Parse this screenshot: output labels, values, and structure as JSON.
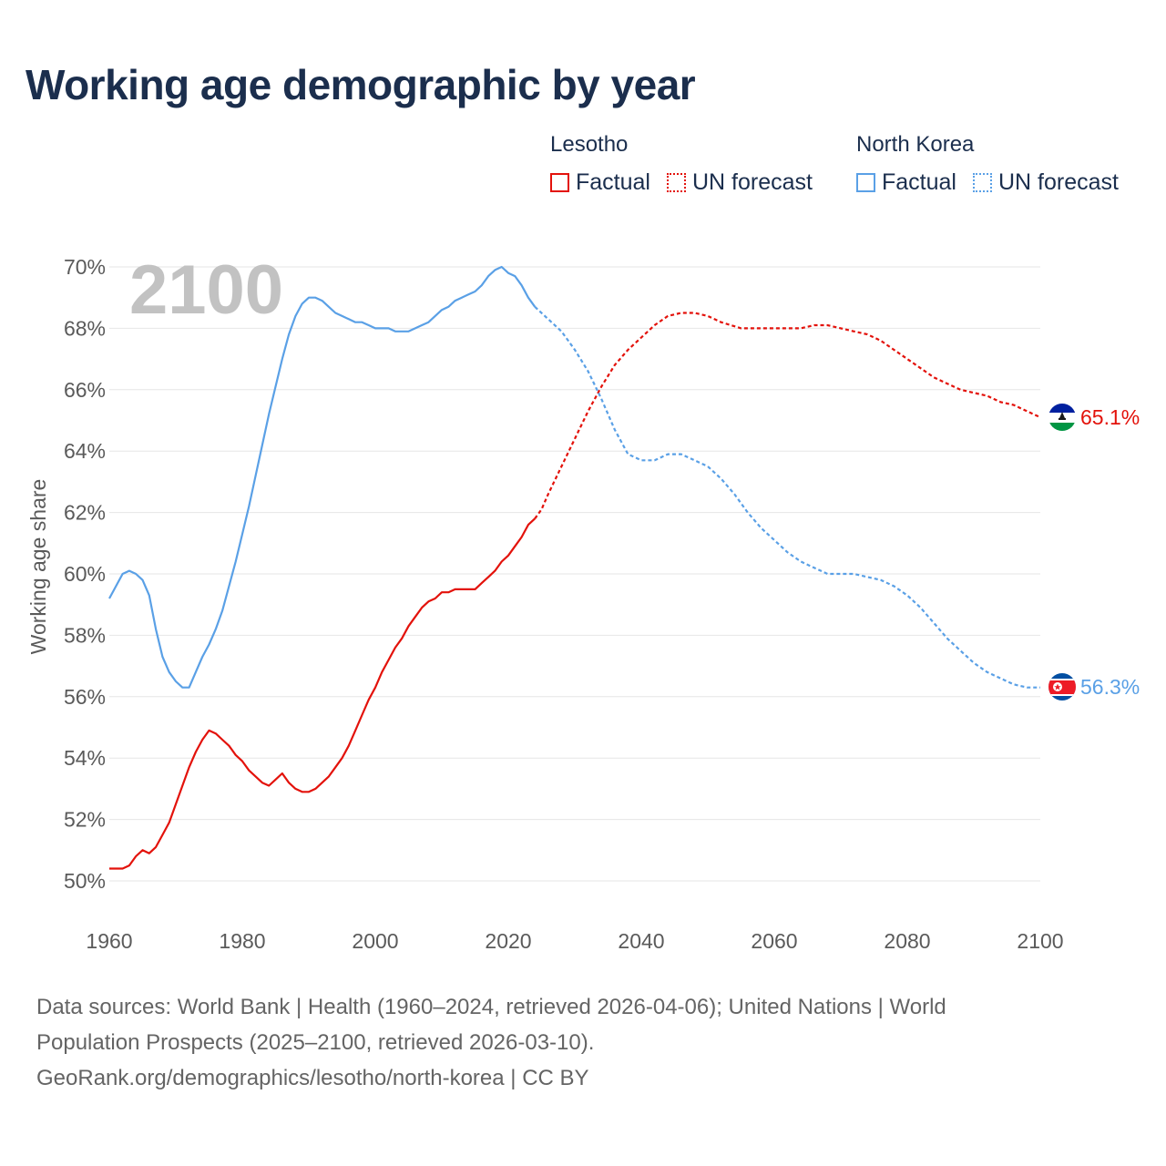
{
  "title": "Working age demographic by year",
  "legend": {
    "groups": [
      {
        "country": "Lesotho",
        "factual": "Factual",
        "forecast": "UN forecast"
      },
      {
        "country": "North Korea",
        "factual": "Factual",
        "forecast": "UN forecast"
      }
    ]
  },
  "source": {
    "line1": "Data sources: World Bank | Health (1960–2024, retrieved 2026-04-06); United Nations | World",
    "line2": "Population Prospects (2025–2100, retrieved 2026-03-10).",
    "line3": "GeoRank.org/demographics/lesotho/north-korea | CC BY"
  },
  "colors": {
    "lesotho": "#e3120b",
    "north_korea": "#5aa0e6",
    "grid": "#e6e6e6",
    "year_watermark": "#c2c2c2"
  },
  "chart_data": {
    "type": "line",
    "title": "Working age demographic by year",
    "xlabel": "",
    "ylabel": "Working age share",
    "xlim": [
      1960,
      2100
    ],
    "ylim": [
      50,
      70
    ],
    "x_ticks": [
      1960,
      1980,
      2000,
      2020,
      2040,
      2060,
      2080,
      2100
    ],
    "y_ticks": [
      50,
      52,
      54,
      56,
      58,
      60,
      62,
      64,
      66,
      68,
      70
    ],
    "y_tick_labels": [
      "50%",
      "52%",
      "54%",
      "56%",
      "58%",
      "60%",
      "62%",
      "64%",
      "66%",
      "68%",
      "70%"
    ],
    "year_display": "2100",
    "factual_range": [
      1960,
      2024
    ],
    "forecast_range": [
      2024,
      2100
    ],
    "series": [
      {
        "name": "Lesotho",
        "end_label": "65.1%",
        "flag": "lesotho-flag",
        "points": [
          [
            1960,
            50.4
          ],
          [
            1962,
            50.4
          ],
          [
            1963,
            50.5
          ],
          [
            1964,
            50.8
          ],
          [
            1965,
            51.0
          ],
          [
            1966,
            50.9
          ],
          [
            1967,
            51.1
          ],
          [
            1968,
            51.5
          ],
          [
            1969,
            51.9
          ],
          [
            1970,
            52.5
          ],
          [
            1971,
            53.1
          ],
          [
            1972,
            53.7
          ],
          [
            1973,
            54.2
          ],
          [
            1974,
            54.6
          ],
          [
            1975,
            54.9
          ],
          [
            1976,
            54.8
          ],
          [
            1977,
            54.6
          ],
          [
            1978,
            54.4
          ],
          [
            1979,
            54.1
          ],
          [
            1980,
            53.9
          ],
          [
            1981,
            53.6
          ],
          [
            1982,
            53.4
          ],
          [
            1983,
            53.2
          ],
          [
            1984,
            53.1
          ],
          [
            1985,
            53.3
          ],
          [
            1986,
            53.5
          ],
          [
            1987,
            53.2
          ],
          [
            1988,
            53.0
          ],
          [
            1989,
            52.9
          ],
          [
            1990,
            52.9
          ],
          [
            1991,
            53.0
          ],
          [
            1992,
            53.2
          ],
          [
            1993,
            53.4
          ],
          [
            1994,
            53.7
          ],
          [
            1995,
            54.0
          ],
          [
            1996,
            54.4
          ],
          [
            1997,
            54.9
          ],
          [
            1998,
            55.4
          ],
          [
            1999,
            55.9
          ],
          [
            2000,
            56.3
          ],
          [
            2001,
            56.8
          ],
          [
            2002,
            57.2
          ],
          [
            2003,
            57.6
          ],
          [
            2004,
            57.9
          ],
          [
            2005,
            58.3
          ],
          [
            2006,
            58.6
          ],
          [
            2007,
            58.9
          ],
          [
            2008,
            59.1
          ],
          [
            2009,
            59.2
          ],
          [
            2010,
            59.4
          ],
          [
            2011,
            59.4
          ],
          [
            2012,
            59.5
          ],
          [
            2013,
            59.5
          ],
          [
            2014,
            59.5
          ],
          [
            2015,
            59.5
          ],
          [
            2016,
            59.7
          ],
          [
            2017,
            59.9
          ],
          [
            2018,
            60.1
          ],
          [
            2019,
            60.4
          ],
          [
            2020,
            60.6
          ],
          [
            2021,
            60.9
          ],
          [
            2022,
            61.2
          ],
          [
            2023,
            61.6
          ],
          [
            2024,
            61.8
          ],
          [
            2025,
            62.1
          ],
          [
            2026,
            62.6
          ],
          [
            2028,
            63.5
          ],
          [
            2030,
            64.4
          ],
          [
            2032,
            65.3
          ],
          [
            2034,
            66.1
          ],
          [
            2036,
            66.8
          ],
          [
            2038,
            67.3
          ],
          [
            2040,
            67.7
          ],
          [
            2042,
            68.1
          ],
          [
            2044,
            68.4
          ],
          [
            2046,
            68.5
          ],
          [
            2048,
            68.5
          ],
          [
            2050,
            68.4
          ],
          [
            2052,
            68.2
          ],
          [
            2055,
            68.0
          ],
          [
            2058,
            68.0
          ],
          [
            2060,
            68.0
          ],
          [
            2064,
            68.0
          ],
          [
            2066,
            68.1
          ],
          [
            2068,
            68.1
          ],
          [
            2070,
            68.0
          ],
          [
            2072,
            67.9
          ],
          [
            2074,
            67.8
          ],
          [
            2076,
            67.6
          ],
          [
            2078,
            67.3
          ],
          [
            2080,
            67.0
          ],
          [
            2082,
            66.7
          ],
          [
            2084,
            66.4
          ],
          [
            2086,
            66.2
          ],
          [
            2088,
            66.0
          ],
          [
            2090,
            65.9
          ],
          [
            2092,
            65.8
          ],
          [
            2094,
            65.6
          ],
          [
            2096,
            65.5
          ],
          [
            2098,
            65.3
          ],
          [
            2100,
            65.1
          ]
        ]
      },
      {
        "name": "North Korea",
        "end_label": "56.3%",
        "flag": "north-korea-flag",
        "points": [
          [
            1960,
            59.2
          ],
          [
            1961,
            59.6
          ],
          [
            1962,
            60.0
          ],
          [
            1963,
            60.1
          ],
          [
            1964,
            60.0
          ],
          [
            1965,
            59.8
          ],
          [
            1966,
            59.3
          ],
          [
            1967,
            58.2
          ],
          [
            1968,
            57.3
          ],
          [
            1969,
            56.8
          ],
          [
            1970,
            56.5
          ],
          [
            1971,
            56.3
          ],
          [
            1972,
            56.3
          ],
          [
            1973,
            56.8
          ],
          [
            1974,
            57.3
          ],
          [
            1975,
            57.7
          ],
          [
            1976,
            58.2
          ],
          [
            1977,
            58.8
          ],
          [
            1978,
            59.6
          ],
          [
            1979,
            60.4
          ],
          [
            1980,
            61.3
          ],
          [
            1981,
            62.2
          ],
          [
            1982,
            63.2
          ],
          [
            1983,
            64.2
          ],
          [
            1984,
            65.2
          ],
          [
            1985,
            66.1
          ],
          [
            1986,
            67.0
          ],
          [
            1987,
            67.8
          ],
          [
            1988,
            68.4
          ],
          [
            1989,
            68.8
          ],
          [
            1990,
            69.0
          ],
          [
            1991,
            69.0
          ],
          [
            1992,
            68.9
          ],
          [
            1993,
            68.7
          ],
          [
            1994,
            68.5
          ],
          [
            1995,
            68.4
          ],
          [
            1996,
            68.3
          ],
          [
            1997,
            68.2
          ],
          [
            1998,
            68.2
          ],
          [
            1999,
            68.1
          ],
          [
            2000,
            68.0
          ],
          [
            2001,
            68.0
          ],
          [
            2002,
            68.0
          ],
          [
            2003,
            67.9
          ],
          [
            2004,
            67.9
          ],
          [
            2005,
            67.9
          ],
          [
            2006,
            68.0
          ],
          [
            2007,
            68.1
          ],
          [
            2008,
            68.2
          ],
          [
            2009,
            68.4
          ],
          [
            2010,
            68.6
          ],
          [
            2011,
            68.7
          ],
          [
            2012,
            68.9
          ],
          [
            2013,
            69.0
          ],
          [
            2014,
            69.1
          ],
          [
            2015,
            69.2
          ],
          [
            2016,
            69.4
          ],
          [
            2017,
            69.7
          ],
          [
            2018,
            69.9
          ],
          [
            2019,
            70.0
          ],
          [
            2020,
            69.8
          ],
          [
            2021,
            69.7
          ],
          [
            2022,
            69.4
          ],
          [
            2023,
            69.0
          ],
          [
            2024,
            68.7
          ],
          [
            2026,
            68.3
          ],
          [
            2028,
            67.9
          ],
          [
            2030,
            67.3
          ],
          [
            2032,
            66.6
          ],
          [
            2034,
            65.7
          ],
          [
            2036,
            64.7
          ],
          [
            2038,
            63.9
          ],
          [
            2040,
            63.7
          ],
          [
            2042,
            63.7
          ],
          [
            2044,
            63.9
          ],
          [
            2046,
            63.9
          ],
          [
            2048,
            63.7
          ],
          [
            2050,
            63.5
          ],
          [
            2052,
            63.1
          ],
          [
            2054,
            62.6
          ],
          [
            2056,
            62.0
          ],
          [
            2058,
            61.5
          ],
          [
            2060,
            61.1
          ],
          [
            2062,
            60.7
          ],
          [
            2064,
            60.4
          ],
          [
            2066,
            60.2
          ],
          [
            2068,
            60.0
          ],
          [
            2070,
            60.0
          ],
          [
            2072,
            60.0
          ],
          [
            2074,
            59.9
          ],
          [
            2076,
            59.8
          ],
          [
            2078,
            59.6
          ],
          [
            2080,
            59.3
          ],
          [
            2082,
            58.9
          ],
          [
            2084,
            58.4
          ],
          [
            2086,
            57.9
          ],
          [
            2088,
            57.5
          ],
          [
            2090,
            57.1
          ],
          [
            2092,
            56.8
          ],
          [
            2094,
            56.6
          ],
          [
            2096,
            56.4
          ],
          [
            2098,
            56.3
          ],
          [
            2100,
            56.3
          ]
        ]
      }
    ]
  }
}
